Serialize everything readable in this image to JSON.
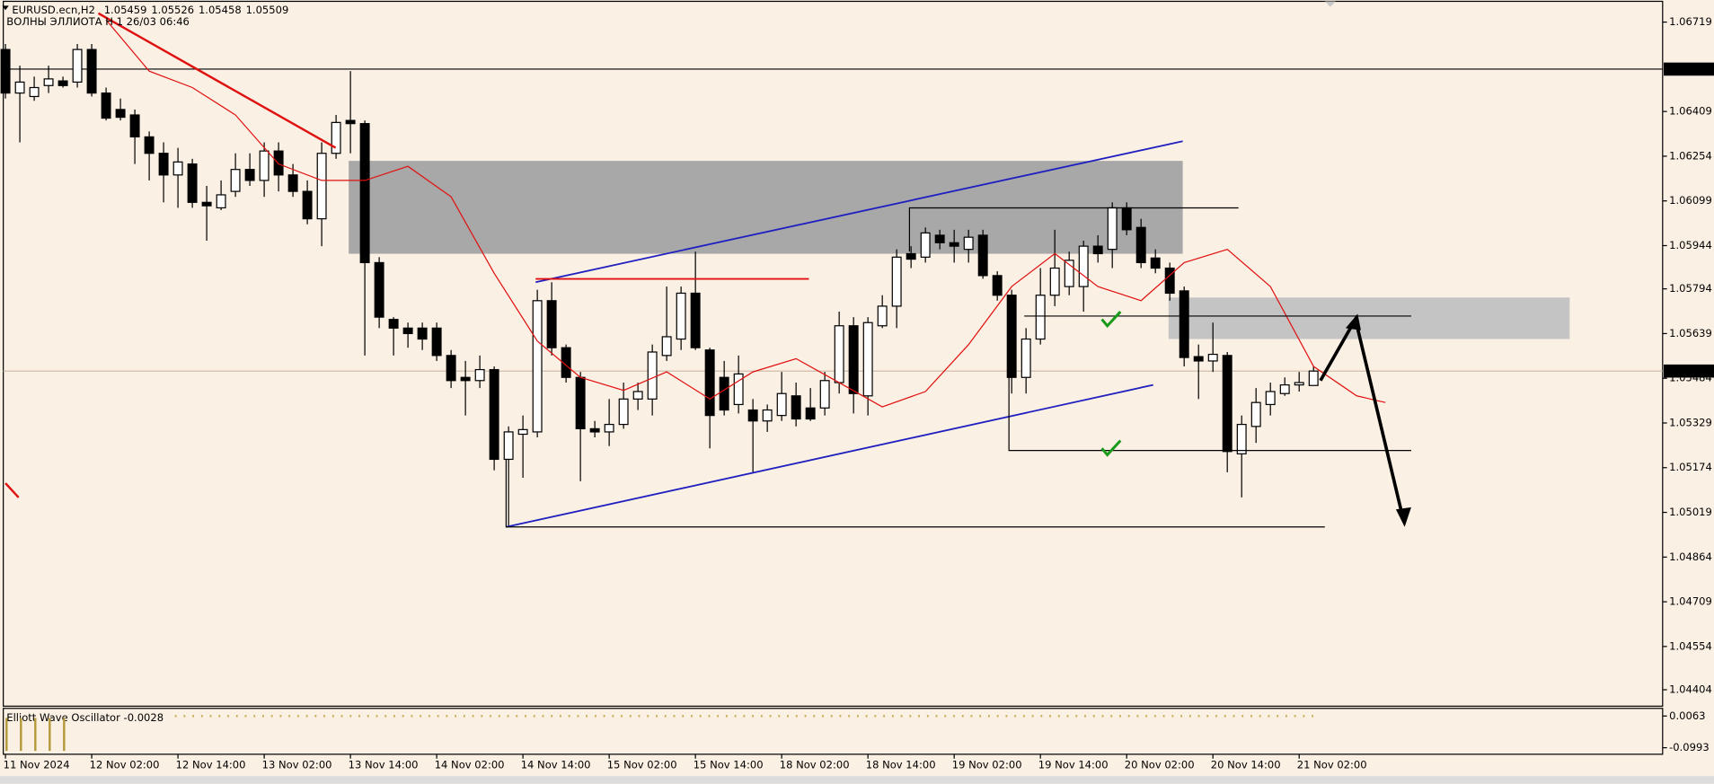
{
  "header": {
    "title": "EURUSD.ecn,H2",
    "values": [
      1.05459,
      1.05526,
      1.05458,
      1.05509
    ],
    "indicator": "ВОЛНЫ ЭЛЛИОТА H 1 26/03 06:46"
  },
  "chart_data": [
    {
      "type": "candlestick",
      "categories": [
        "11 Nov 2024",
        null,
        null,
        null,
        null,
        null,
        "12 Nov 02:00",
        null,
        null,
        null,
        null,
        null,
        "12 Nov 14:00",
        null,
        null,
        null,
        null,
        null,
        "13 Nov 02:00",
        null,
        null,
        null,
        null,
        null,
        "13 Nov 14:00",
        null,
        null,
        null,
        null,
        null,
        "14 Nov 02:00",
        null,
        null,
        null,
        null,
        null,
        "14 Nov 14:00",
        null,
        null,
        null,
        null,
        null,
        "15 Nov 02:00",
        null,
        null,
        null,
        null,
        null,
        "15 Nov 14:00",
        null,
        null,
        null,
        null,
        null,
        "18 Nov 02:00",
        null,
        null,
        null,
        null,
        null,
        "18 Nov 14:00",
        null,
        null,
        null,
        null,
        null,
        "19 Nov 02:00",
        null,
        null,
        null,
        null,
        null,
        "19 Nov 14:00",
        null,
        null,
        null,
        null,
        null,
        "20 Nov 02:00",
        null,
        null,
        null,
        null,
        null,
        "20 Nov 14:00",
        null,
        null,
        null,
        null,
        null,
        "21 Nov 02:00",
        null
      ],
      "open": [
        1.06624,
        1.06473,
        1.06461,
        1.06499,
        1.06515,
        1.06511,
        1.06624,
        1.06473,
        1.06416,
        1.06397,
        1.06321,
        1.06264,
        1.06189,
        1.06227,
        1.06094,
        1.06075,
        1.06132,
        1.06208,
        1.0617,
        1.06272,
        1.06189,
        1.06132,
        1.06037,
        1.06264,
        1.06378,
        1.06367,
        1.05885,
        1.05688,
        1.05658,
        1.05658,
        1.05658,
        1.05563,
        1.05487,
        1.05476,
        1.05514,
        1.05203,
        1.0529,
        1.05298,
        1.05753,
        1.0559,
        1.05487,
        1.05309,
        1.05298,
        1.05324,
        1.05412,
        1.05412,
        1.05563,
        1.0562,
        1.05779,
        1.05582,
        1.05487,
        1.05393,
        1.05374,
        1.05336,
        1.05355,
        1.05423,
        1.05381,
        1.05381,
        1.05469,
        1.05666,
        1.05423,
        1.05666,
        1.05734,
        1.05916,
        1.05904,
        1.0598,
        1.05954,
        1.05931,
        1.0598,
        1.0584,
        1.05772,
        1.05487,
        1.0562,
        1.05772,
        1.05802,
        1.05802,
        1.05942,
        1.05931,
        1.06075,
        1.06007,
        1.05901,
        1.05866,
        1.05787,
        1.05559,
        1.05544,
        1.05563,
        1.05222,
        1.05317,
        1.05393,
        1.05431,
        1.05461,
        1.05459
      ],
      "high": [
        1.06643,
        1.06568,
        1.0653,
        1.06568,
        1.0653,
        1.06643,
        1.06643,
        1.06492,
        1.06454,
        1.06416,
        1.0634,
        1.06302,
        1.06283,
        1.06245,
        1.06151,
        1.0617,
        1.06264,
        1.06264,
        1.06302,
        1.06302,
        1.06227,
        1.0617,
        1.06302,
        1.06397,
        1.06549,
        1.06378,
        1.05904,
        1.05696,
        1.05677,
        1.05677,
        1.05677,
        1.05582,
        1.05544,
        1.05563,
        1.05525,
        1.05317,
        1.05355,
        1.05791,
        1.05817,
        1.05601,
        1.05506,
        1.05336,
        1.05412,
        1.05469,
        1.05469,
        1.05601,
        1.05802,
        1.05802,
        1.05923,
        1.0559,
        1.05544,
        1.05563,
        1.05412,
        1.05393,
        1.05506,
        1.05469,
        1.0545,
        1.05506,
        1.05715,
        1.05696,
        1.05696,
        1.05772,
        1.05931,
        1.05942,
        1.06007,
        1.05999,
        1.05999,
        1.05999,
        1.05999,
        1.05855,
        1.05791,
        1.05658,
        1.05866,
        1.05999,
        1.05923,
        1.05961,
        1.0598,
        1.06094,
        1.06094,
        1.06037,
        1.05931,
        1.05885,
        1.05802,
        1.05601,
        1.05677,
        1.05575,
        1.05355,
        1.0545,
        1.05469,
        1.05487,
        1.05506,
        1.05526
      ],
      "low": [
        1.06454,
        1.06302,
        1.06446,
        1.06473,
        1.06492,
        1.06492,
        1.06461,
        1.06378,
        1.06378,
        1.06227,
        1.0617,
        1.06094,
        1.06075,
        1.06075,
        1.05961,
        1.06067,
        1.06113,
        1.06151,
        1.06113,
        1.06132,
        1.06113,
        1.06018,
        1.05942,
        1.06245,
        1.06264,
        1.05563,
        1.05658,
        1.05563,
        1.0559,
        1.05582,
        1.05544,
        1.0545,
        1.05355,
        1.0545,
        1.05165,
        1.04968,
        1.05139,
        1.05279,
        1.05563,
        1.05469,
        1.05127,
        1.05279,
        1.05249,
        1.05309,
        1.05374,
        1.05355,
        1.05544,
        1.05582,
        1.05582,
        1.05241,
        1.05355,
        1.05362,
        1.05158,
        1.05298,
        1.05336,
        1.05317,
        1.05336,
        1.05355,
        1.05431,
        1.05362,
        1.05355,
        1.05658,
        1.05658,
        1.05866,
        1.05885,
        1.05931,
        1.05885,
        1.05885,
        1.05829,
        1.05753,
        1.05431,
        1.05431,
        1.05601,
        1.05734,
        1.05772,
        1.05715,
        1.05885,
        1.05866,
        1.0598,
        1.05866,
        1.05848,
        1.05753,
        1.05525,
        1.05412,
        1.05506,
        1.05158,
        1.05071,
        1.0526,
        1.05355,
        1.05423,
        1.05438,
        1.05458
      ],
      "close": [
        1.06473,
        1.06511,
        1.06492,
        1.06522,
        1.06499,
        1.06624,
        1.06473,
        1.06386,
        1.06389,
        1.06321,
        1.06264,
        1.06189,
        1.06234,
        1.06094,
        1.06082,
        1.0612,
        1.06208,
        1.0617,
        1.06272,
        1.06189,
        1.06132,
        1.06037,
        1.06264,
        1.06371,
        1.06367,
        1.05885,
        1.05696,
        1.05658,
        1.05639,
        1.0562,
        1.05563,
        1.05476,
        1.05476,
        1.05514,
        1.05203,
        1.05298,
        1.05306,
        1.05753,
        1.0559,
        1.05487,
        1.05309,
        1.05298,
        1.05324,
        1.05412,
        1.05438,
        1.05575,
        1.05628,
        1.05779,
        1.0559,
        1.05355,
        1.05374,
        1.05499,
        1.05336,
        1.05374,
        1.05431,
        1.05343,
        1.05343,
        1.05476,
        1.05666,
        1.05431,
        1.05677,
        1.05734,
        1.05904,
        1.05897,
        1.05988,
        1.05954,
        1.05942,
        1.05973,
        1.0584,
        1.05772,
        1.05487,
        1.0562,
        1.05772,
        1.05866,
        1.05893,
        1.05942,
        1.05916,
        1.06075,
        1.05999,
        1.05885,
        1.05866,
        1.05779,
        1.05556,
        1.05544,
        1.05567,
        1.0523,
        1.05324,
        1.054,
        1.05438,
        1.05461,
        1.05469,
        1.05509
      ],
      "color_up": "#ffffff",
      "color_down": "#000000",
      "ma": {
        "color": "#e01010",
        "x": [
          7,
          10,
          13,
          16,
          19,
          22,
          25,
          28,
          31,
          34,
          37,
          40,
          43,
          46,
          49,
          52,
          55,
          58,
          61,
          64,
          67,
          70,
          73,
          76,
          79,
          82,
          85,
          88,
          91,
          94,
          96
        ],
        "values": [
          1.06727,
          1.06549,
          1.06492,
          1.06397,
          1.06227,
          1.0617,
          1.0617,
          1.06219,
          1.06113,
          1.05848,
          1.05613,
          1.05487,
          1.05442,
          1.05506,
          1.05412,
          1.05506,
          1.05552,
          1.05469,
          1.05385,
          1.05438,
          1.05601,
          1.05802,
          1.05916,
          1.05802,
          1.05753,
          1.05885,
          1.05931,
          1.05802,
          1.05525,
          1.05423,
          1.054
        ]
      },
      "levels": [
        {
          "value": 1.06556,
          "color": "#000000"
        },
        {
          "value": 1.05509,
          "color": "#cdb8a4"
        }
      ],
      "ylim": [
        1.04347,
        1.06791
      ],
      "yticks": [
        1.06719,
        1.06409,
        1.06254,
        1.06099,
        1.05944,
        1.05794,
        1.05639,
        1.05484,
        1.05329,
        1.05174,
        1.05019,
        1.04864,
        1.04709,
        1.04554,
        1.04404
      ]
    },
    {
      "type": "bar",
      "title": "Elliott Wave Oscillator -0.0028",
      "values": [
        -0.11,
        -0.11,
        -0.11,
        -0.11,
        -0.11
      ],
      "color": "#b59a3c",
      "ylim": [
        -0.1211,
        0.0318
      ],
      "yticks": [
        0.0063,
        -0.0993
      ]
    }
  ]
}
